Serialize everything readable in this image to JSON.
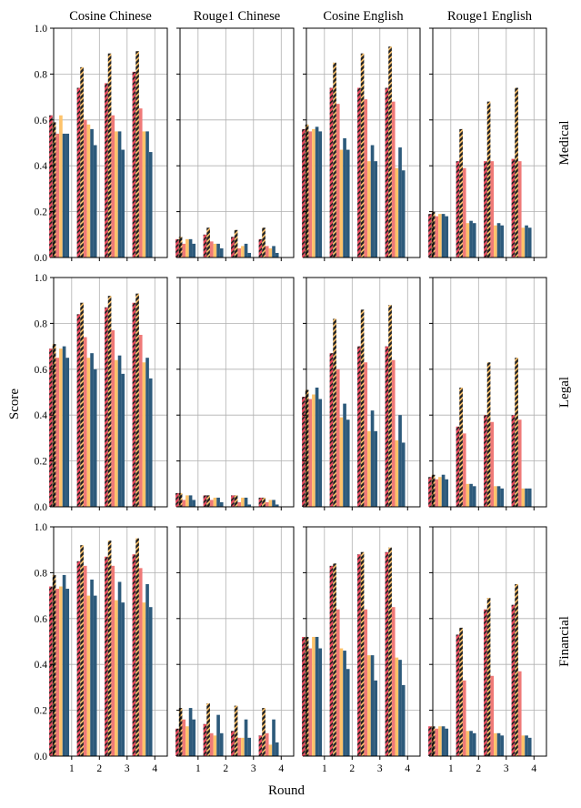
{
  "figure": {
    "ylabel": "Score",
    "xlabel": "Round"
  },
  "colors": {
    "c1": "#e8485e",
    "c2": "#1c3a4d",
    "c3": "#ef7a78",
    "c4": "#fec36a",
    "c5": "#2d5a7b",
    "hatch_dark": "#222222",
    "grid": "#b0b0b0"
  },
  "chart_data": {
    "type": "bar",
    "column_titles": [
      "Cosine Chinese",
      "Rouge1 Chinese",
      "Cosine English",
      "Rouge1 English"
    ],
    "row_labels": [
      "Medical",
      "Legal",
      "Financial"
    ],
    "x_ticks": [
      "1",
      "2",
      "3",
      "4"
    ],
    "y_ticks": [
      "0.0",
      "0.2",
      "0.4",
      "0.6",
      "0.8",
      "1.0"
    ],
    "ylim": [
      0,
      1
    ],
    "grid": true,
    "categories": [
      1,
      2,
      3,
      4
    ],
    "bars_per_group": 6,
    "hatched_bars": [
      1,
      3
    ],
    "hatch_colors": [
      "#fec36a",
      "#fec36a",
      "#fec36a",
      "#fec36a",
      "#fec36a",
      "#fec36a"
    ],
    "panels": [
      [
        {
          "series": [
            [
              0.62,
              0.59,
              0.54,
              0.62,
              0.54,
              0.54
            ],
            [
              0.74,
              0.83,
              0.6,
              0.58,
              0.56,
              0.49
            ],
            [
              0.76,
              0.89,
              0.62,
              0.55,
              0.55,
              0.47
            ],
            [
              0.81,
              0.9,
              0.65,
              0.55,
              0.55,
              0.46
            ]
          ]
        },
        {
          "series": [
            [
              0.08,
              0.09,
              0.06,
              0.08,
              0.08,
              0.06
            ],
            [
              0.1,
              0.13,
              0.07,
              0.06,
              0.06,
              0.04
            ],
            [
              0.09,
              0.12,
              0.04,
              0.05,
              0.06,
              0.02
            ],
            [
              0.08,
              0.13,
              0.05,
              0.04,
              0.05,
              0.02
            ]
          ]
        },
        {
          "series": [
            [
              0.56,
              0.58,
              0.55,
              0.56,
              0.57,
              0.55
            ],
            [
              0.74,
              0.85,
              0.67,
              0.47,
              0.52,
              0.47
            ],
            [
              0.74,
              0.89,
              0.69,
              0.42,
              0.49,
              0.42
            ],
            [
              0.74,
              0.92,
              0.68,
              0.39,
              0.48,
              0.38
            ]
          ]
        },
        {
          "series": [
            [
              0.19,
              0.2,
              0.18,
              0.19,
              0.19,
              0.18
            ],
            [
              0.42,
              0.56,
              0.39,
              0.15,
              0.16,
              0.15
            ],
            [
              0.42,
              0.68,
              0.42,
              0.14,
              0.15,
              0.14
            ],
            [
              0.43,
              0.74,
              0.42,
              0.13,
              0.14,
              0.13
            ]
          ]
        }
      ],
      [
        {
          "series": [
            [
              0.69,
              0.71,
              0.65,
              0.69,
              0.7,
              0.65
            ],
            [
              0.84,
              0.89,
              0.74,
              0.65,
              0.67,
              0.6
            ],
            [
              0.87,
              0.92,
              0.77,
              0.64,
              0.66,
              0.58
            ],
            [
              0.89,
              0.93,
              0.75,
              0.63,
              0.65,
              0.56
            ]
          ]
        },
        {
          "series": [
            [
              0.06,
              0.06,
              0.03,
              0.05,
              0.05,
              0.03
            ],
            [
              0.05,
              0.05,
              0.03,
              0.04,
              0.04,
              0.02
            ],
            [
              0.05,
              0.05,
              0.02,
              0.04,
              0.04,
              0.01
            ],
            [
              0.04,
              0.04,
              0.02,
              0.03,
              0.03,
              0.01
            ]
          ]
        },
        {
          "series": [
            [
              0.48,
              0.51,
              0.47,
              0.49,
              0.52,
              0.47
            ],
            [
              0.67,
              0.82,
              0.6,
              0.39,
              0.45,
              0.38
            ],
            [
              0.7,
              0.86,
              0.63,
              0.33,
              0.42,
              0.33
            ],
            [
              0.7,
              0.88,
              0.64,
              0.29,
              0.4,
              0.28
            ]
          ]
        },
        {
          "series": [
            [
              0.13,
              0.14,
              0.12,
              0.13,
              0.14,
              0.12
            ],
            [
              0.35,
              0.52,
              0.32,
              0.1,
              0.1,
              0.09
            ],
            [
              0.4,
              0.63,
              0.37,
              0.09,
              0.09,
              0.08
            ],
            [
              0.4,
              0.65,
              0.38,
              0.08,
              0.08,
              0.08
            ]
          ]
        }
      ],
      [
        {
          "series": [
            [
              0.74,
              0.79,
              0.73,
              0.74,
              0.79,
              0.73
            ],
            [
              0.85,
              0.92,
              0.83,
              0.7,
              0.77,
              0.7
            ],
            [
              0.87,
              0.94,
              0.83,
              0.68,
              0.76,
              0.67
            ],
            [
              0.88,
              0.95,
              0.82,
              0.67,
              0.75,
              0.65
            ]
          ]
        },
        {
          "series": [
            [
              0.12,
              0.21,
              0.16,
              0.13,
              0.21,
              0.16
            ],
            [
              0.14,
              0.23,
              0.1,
              0.09,
              0.18,
              0.1
            ],
            [
              0.11,
              0.22,
              0.08,
              0.08,
              0.16,
              0.08
            ],
            [
              0.09,
              0.21,
              0.1,
              0.05,
              0.16,
              0.06
            ]
          ]
        },
        {
          "series": [
            [
              0.52,
              0.52,
              0.47,
              0.52,
              0.52,
              0.47
            ],
            [
              0.83,
              0.84,
              0.64,
              0.47,
              0.46,
              0.38
            ],
            [
              0.88,
              0.89,
              0.64,
              0.44,
              0.44,
              0.33
            ],
            [
              0.89,
              0.91,
              0.65,
              0.43,
              0.42,
              0.31
            ]
          ]
        },
        {
          "series": [
            [
              0.13,
              0.13,
              0.12,
              0.13,
              0.13,
              0.12
            ],
            [
              0.53,
              0.56,
              0.33,
              0.11,
              0.11,
              0.1
            ],
            [
              0.64,
              0.69,
              0.35,
              0.1,
              0.1,
              0.09
            ],
            [
              0.66,
              0.75,
              0.37,
              0.09,
              0.09,
              0.08
            ]
          ]
        }
      ]
    ]
  }
}
